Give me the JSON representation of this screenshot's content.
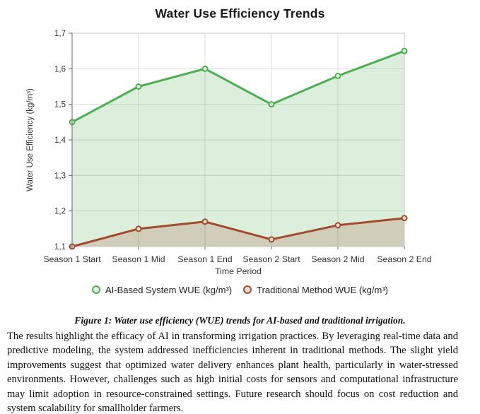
{
  "chart_data": {
    "type": "area",
    "title": "Water Use Efficiency Trends",
    "xlabel": "Time Period",
    "ylabel": "Water Use Efficiency (kg/m³)",
    "categories": [
      "Season 1 Start",
      "Season 1 Mid",
      "Season 1 End",
      "Season 2 Start",
      "Season 2 Mid",
      "Season 2 End"
    ],
    "series": [
      {
        "name": "AI-Based System WUE (kg/m³)",
        "color": "#4caf50",
        "fill": "rgba(76,175,80,0.2)",
        "marker_fill": "#e6f4e7",
        "values": [
          1.45,
          1.55,
          1.6,
          1.5,
          1.58,
          1.65
        ]
      },
      {
        "name": "Traditional Method WUE (kg/m³)",
        "color": "#a3492d",
        "fill": "rgba(163,73,45,0.2)",
        "marker_fill": "#f2e0d6",
        "values": [
          1.1,
          1.15,
          1.17,
          1.12,
          1.16,
          1.18
        ]
      }
    ],
    "ylim": [
      1.1,
      1.7
    ],
    "yticks": [
      {
        "v": 1.1,
        "label": "1,1"
      },
      {
        "v": 1.2,
        "label": "1,2"
      },
      {
        "v": 1.3,
        "label": "1,3"
      },
      {
        "v": 1.4,
        "label": "1,4"
      },
      {
        "v": 1.5,
        "label": "1,5"
      },
      {
        "v": 1.6,
        "label": "1,6"
      },
      {
        "v": 1.7,
        "label": "1,7"
      }
    ],
    "grid": true,
    "legend_position": "bottom",
    "colors": {
      "grid": "#dcdcdc",
      "border": "#c8c8c8",
      "axis": "#666666",
      "tick_label": "#333333"
    }
  },
  "document": {
    "caption": "Figure 1: Water use efficiency (WUE) trends for AI-based and traditional irrigation.",
    "body": "The results highlight the efficacy of AI in transforming irrigation practices. By leveraging real-time data and predictive modeling, the system addressed inefficiencies inherent in traditional methods. The slight yield improvements suggest that optimized water delivery enhances plant health, particularly in water-stressed environments. However, challenges such as high initial costs for sensors and computational infrastructure may limit adoption in resource-constrained settings. Future research should focus on cost reduction and system scalability for smallholder farmers."
  }
}
